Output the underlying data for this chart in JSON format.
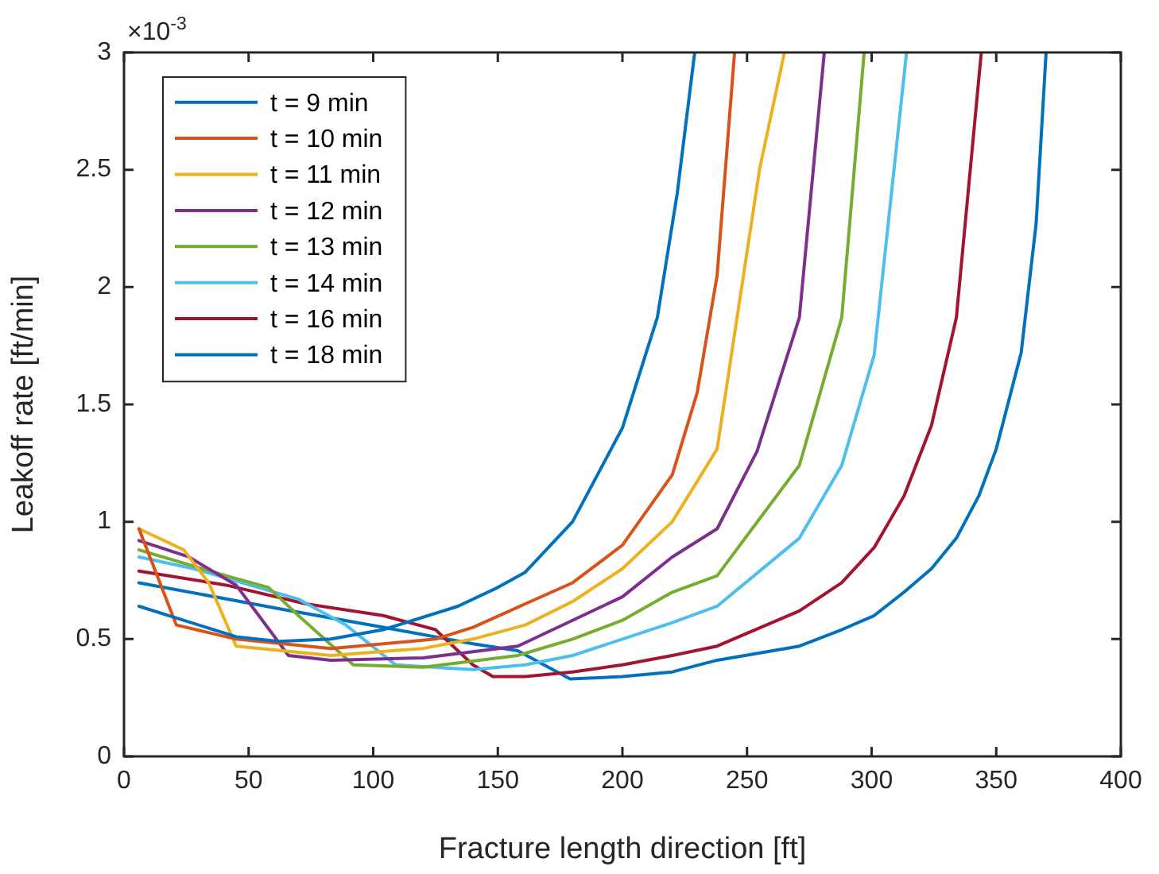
{
  "chart_data": {
    "type": "line",
    "xlabel": "Fracture length direction [ft]",
    "ylabel": "Leakoff rate [ft/min]",
    "annotations": [
      "×10$^{-3}$"
    ],
    "xlim": [
      0,
      400
    ],
    "xticks": [
      0,
      50,
      100,
      150,
      200,
      250,
      300,
      350,
      400
    ],
    "ylim": [
      0,
      3
    ],
    "yticks": [
      0,
      0.5,
      1,
      1.5,
      2,
      2.5,
      3
    ],
    "grid": false,
    "legend": "top left",
    "marker": "none",
    "line_style": "solid",
    "series": [
      {
        "name": "t = 9 min",
        "color": "#0072bd",
        "x": [
          6,
          45,
          62,
          83,
          104,
          134,
          150,
          161,
          180,
          200,
          214,
          222,
          229
        ],
        "values": [
          0.64,
          0.51,
          0.49,
          0.5,
          0.54,
          0.64,
          0.72,
          0.785,
          1,
          1.4,
          1.87,
          2.4,
          3
        ]
      },
      {
        "name": "t = 10 min",
        "color": "#d95319",
        "x": [
          6,
          21,
          45,
          83,
          125,
          140,
          161,
          180,
          200,
          220,
          230,
          238,
          245
        ],
        "values": [
          0.97,
          0.56,
          0.5,
          0.46,
          0.5,
          0.55,
          0.65,
          0.74,
          0.9,
          1.2,
          1.55,
          2.05,
          3
        ]
      },
      {
        "name": "t = 11 min",
        "color": "#edb120",
        "x": [
          6,
          24,
          34,
          45,
          83,
          120,
          140,
          161,
          180,
          200,
          220,
          238,
          255,
          265
        ],
        "values": [
          0.97,
          0.88,
          0.74,
          0.47,
          0.43,
          0.46,
          0.5,
          0.56,
          0.66,
          0.8,
          1,
          1.31,
          2.5,
          3
        ]
      },
      {
        "name": "t = 12 min",
        "color": "#7e2f8e",
        "x": [
          6,
          26,
          45,
          66,
          83,
          120,
          158,
          180,
          200,
          220,
          238,
          254,
          271,
          281
        ],
        "values": [
          0.92,
          0.85,
          0.73,
          0.43,
          0.41,
          0.42,
          0.47,
          0.58,
          0.68,
          0.85,
          0.97,
          1.3,
          1.87,
          3
        ]
      },
      {
        "name": "t = 13 min",
        "color": "#77ac30",
        "x": [
          6,
          41,
          58,
          70,
          92,
          120,
          158,
          180,
          200,
          220,
          238,
          271,
          288,
          297
        ],
        "values": [
          0.88,
          0.77,
          0.72,
          0.6,
          0.39,
          0.38,
          0.43,
          0.5,
          0.58,
          0.7,
          0.77,
          1.24,
          1.87,
          3
        ]
      },
      {
        "name": "t = 14 min",
        "color": "#4dbeee",
        "x": [
          6,
          28,
          70,
          89,
          109,
          140,
          161,
          180,
          200,
          220,
          238,
          271,
          288,
          301,
          314
        ],
        "values": [
          0.85,
          0.8,
          0.67,
          0.56,
          0.39,
          0.37,
          0.39,
          0.43,
          0.5,
          0.57,
          0.64,
          0.93,
          1.24,
          1.71,
          3
        ]
      },
      {
        "name": "t = 16 min",
        "color": "#a2142f",
        "x": [
          6,
          41,
          73,
          104,
          125,
          140,
          148,
          161,
          180,
          200,
          220,
          238,
          271,
          288,
          301,
          313,
          324,
          334,
          344
        ],
        "values": [
          0.79,
          0.73,
          0.65,
          0.6,
          0.54,
          0.39,
          0.34,
          0.34,
          0.36,
          0.39,
          0.43,
          0.47,
          0.62,
          0.74,
          0.89,
          1.11,
          1.41,
          1.87,
          3
        ]
      },
      {
        "name": "t = 18 min",
        "color": "#0072bd",
        "x": [
          6,
          62,
          104,
          140,
          158,
          179,
          200,
          220,
          238,
          271,
          288,
          301,
          313,
          324,
          334,
          343,
          350,
          360,
          366,
          370
        ],
        "values": [
          0.74,
          0.63,
          0.55,
          0.48,
          0.45,
          0.33,
          0.34,
          0.36,
          0.41,
          0.47,
          0.54,
          0.6,
          0.7,
          0.8,
          0.93,
          1.11,
          1.31,
          1.72,
          2.27,
          3
        ]
      }
    ]
  }
}
